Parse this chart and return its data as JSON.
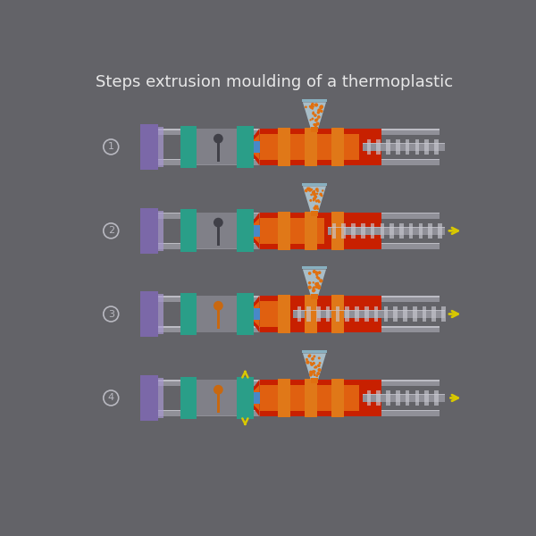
{
  "title": "Steps extrusion moulding of a thermoplastic",
  "bg_color": "#636368",
  "title_color": "#e8e8e8",
  "title_fontsize": 13,
  "colors": {
    "purple": "#7b68a8",
    "purple_hi": "#a898d0",
    "teal": "#2a9e88",
    "teal_dark": "#1a6e60",
    "gray_rail": "#909098",
    "gray_rail_hi": "#c8c8d0",
    "gray_mold": "#808088",
    "gray_mold_hi": "#a0a0a8",
    "red_barrel": "#c82000",
    "orange_barrel": "#e06010",
    "orange_fill": "#e07818",
    "orange_pellets": "#e07010",
    "hopper_glass": "#c0dce8",
    "hopper_outline": "#88b0c0",
    "screw_gray": "#909098",
    "screw_hi": "#c8c8d0",
    "screw_dark": "#606068",
    "blue_nozzle": "#4888c8",
    "yellow_arrow": "#d8c800",
    "spoon_dark": "#404048",
    "spoon_orange": "#c86810",
    "step_circle": "#b8b8c0"
  }
}
